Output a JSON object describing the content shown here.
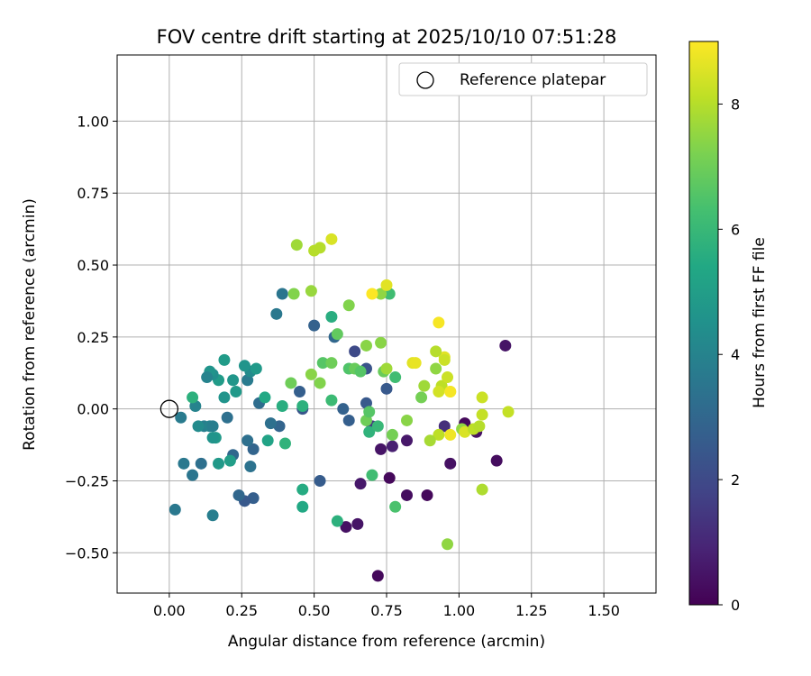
{
  "chart_data": {
    "type": "scatter",
    "title": "FOV centre drift starting at 2025/10/10 07:51:28",
    "xlabel": "Angular distance from reference (arcmin)",
    "ylabel": "Rotation from reference (arcmin)",
    "xlim": [
      -0.18,
      1.68
    ],
    "ylim": [
      -0.64,
      1.23
    ],
    "xticks": [
      0.0,
      0.25,
      0.5,
      0.75,
      1.0,
      1.25,
      1.5
    ],
    "xtick_labels": [
      "0.00",
      "0.25",
      "0.50",
      "0.75",
      "1.00",
      "1.25",
      "1.50"
    ],
    "yticks": [
      -0.5,
      -0.25,
      0.0,
      0.25,
      0.5,
      0.75,
      1.0
    ],
    "ytick_labels": [
      "−0.50",
      "−0.25",
      "0.00",
      "0.25",
      "0.50",
      "0.75",
      "1.00"
    ],
    "grid": true,
    "legend_position": "top-right",
    "reference": {
      "label": "Reference platepar",
      "x": 0.0,
      "y": 0.0
    },
    "colorbar": {
      "label": "Hours from first FF file",
      "range": [
        0,
        9
      ],
      "ticks": [
        0,
        2,
        4,
        6,
        8
      ],
      "tick_labels": [
        "0",
        "2",
        "4",
        "6",
        "8"
      ],
      "colormap": "viridis"
    },
    "points": [
      [
        0.72,
        -0.58,
        0.2
      ],
      [
        0.61,
        -0.41,
        0.4
      ],
      [
        0.65,
        -0.4,
        0.5
      ],
      [
        0.66,
        -0.26,
        0.6
      ],
      [
        0.76,
        -0.24,
        0.2
      ],
      [
        0.82,
        -0.3,
        0.3
      ],
      [
        0.89,
        -0.3,
        0.2
      ],
      [
        0.97,
        -0.19,
        0.4
      ],
      [
        1.13,
        -0.18,
        0.3
      ],
      [
        1.16,
        0.22,
        0.5
      ],
      [
        1.02,
        -0.05,
        0.2
      ],
      [
        1.06,
        -0.08,
        0.4
      ],
      [
        0.95,
        -0.06,
        1.2
      ],
      [
        0.73,
        -0.14,
        0.5
      ],
      [
        0.77,
        -0.13,
        0.8
      ],
      [
        0.82,
        -0.11,
        0.6
      ],
      [
        0.7,
        -0.06,
        1.5
      ],
      [
        0.68,
        0.02,
        2.5
      ],
      [
        0.68,
        0.14,
        2.3
      ],
      [
        0.75,
        0.07,
        2.5
      ],
      [
        0.64,
        0.2,
        2.0
      ],
      [
        0.6,
        0.0,
        2.8
      ],
      [
        0.62,
        -0.04,
        2.7
      ],
      [
        0.57,
        0.25,
        3.0
      ],
      [
        0.5,
        0.29,
        2.8
      ],
      [
        0.52,
        -0.25,
        2.6
      ],
      [
        0.45,
        0.06,
        2.7
      ],
      [
        0.46,
        0.0,
        2.4
      ],
      [
        0.38,
        -0.06,
        2.9
      ],
      [
        0.35,
        -0.05,
        3.3
      ],
      [
        0.39,
        0.4,
        3.5
      ],
      [
        0.37,
        0.33,
        3.6
      ],
      [
        0.31,
        0.02,
        3.2
      ],
      [
        0.29,
        -0.14,
        2.9
      ],
      [
        0.27,
        -0.11,
        3.3
      ],
      [
        0.28,
        -0.2,
        3.4
      ],
      [
        0.29,
        -0.31,
        2.7
      ],
      [
        0.26,
        -0.32,
        2.5
      ],
      [
        0.24,
        -0.3,
        3.0
      ],
      [
        0.22,
        -0.16,
        3.0
      ],
      [
        0.2,
        -0.03,
        3.3
      ],
      [
        0.19,
        0.04,
        4.6
      ],
      [
        0.22,
        0.1,
        4.7
      ],
      [
        0.23,
        0.06,
        4.8
      ],
      [
        0.27,
        0.1,
        3.7
      ],
      [
        0.28,
        0.13,
        4.3
      ],
      [
        0.3,
        0.14,
        4.8
      ],
      [
        0.26,
        0.15,
        4.6
      ],
      [
        0.19,
        0.17,
        4.9
      ],
      [
        0.17,
        0.1,
        4.9
      ],
      [
        0.15,
        0.12,
        4.4
      ],
      [
        0.14,
        0.13,
        4.6
      ],
      [
        0.13,
        0.11,
        4.0
      ],
      [
        0.12,
        -0.06,
        3.8
      ],
      [
        0.14,
        -0.06,
        4.0
      ],
      [
        0.15,
        -0.06,
        3.8
      ],
      [
        0.16,
        -0.1,
        4.8
      ],
      [
        0.1,
        -0.06,
        4.3
      ],
      [
        0.09,
        0.01,
        4.0
      ],
      [
        0.08,
        0.04,
        5.7
      ],
      [
        0.04,
        -0.03,
        3.7
      ],
      [
        0.05,
        -0.19,
        3.6
      ],
      [
        0.08,
        -0.23,
        3.5
      ],
      [
        0.11,
        -0.19,
        3.3
      ],
      [
        0.15,
        -0.1,
        4.6
      ],
      [
        0.17,
        -0.19,
        4.8
      ],
      [
        0.21,
        -0.18,
        5.0
      ],
      [
        0.15,
        -0.37,
        3.8
      ],
      [
        0.02,
        -0.35,
        3.6
      ],
      [
        0.34,
        -0.11,
        5.2
      ],
      [
        0.33,
        0.04,
        5.4
      ],
      [
        0.39,
        0.01,
        5.6
      ],
      [
        0.4,
        -0.12,
        5.8
      ],
      [
        0.46,
        0.01,
        5.7
      ],
      [
        0.46,
        -0.28,
        5.5
      ],
      [
        0.46,
        -0.34,
        5.4
      ],
      [
        0.56,
        0.03,
        6.1
      ],
      [
        0.56,
        0.32,
        5.6
      ],
      [
        0.58,
        0.26,
        6.8
      ],
      [
        0.62,
        0.14,
        6.5
      ],
      [
        0.64,
        0.14,
        6.9
      ],
      [
        0.66,
        0.13,
        6.6
      ],
      [
        0.68,
        -0.04,
        7.0
      ],
      [
        0.69,
        -0.01,
        6.6
      ],
      [
        0.69,
        -0.08,
        5.8
      ],
      [
        0.72,
        -0.06,
        6.0
      ],
      [
        0.7,
        -0.23,
        6.2
      ],
      [
        0.78,
        -0.34,
        6.4
      ],
      [
        0.58,
        -0.39,
        5.7
      ],
      [
        0.76,
        0.4,
        6.2
      ],
      [
        0.78,
        0.11,
        6.2
      ],
      [
        0.74,
        0.13,
        6.9
      ],
      [
        0.73,
        0.23,
        7.4
      ],
      [
        0.68,
        0.22,
        7.4
      ],
      [
        0.73,
        0.4,
        7.5
      ],
      [
        0.62,
        0.36,
        7.3
      ],
      [
        0.75,
        0.14,
        7.7
      ],
      [
        0.77,
        -0.09,
        7.1
      ],
      [
        0.82,
        -0.04,
        7.4
      ],
      [
        0.87,
        0.04,
        7.1
      ],
      [
        0.88,
        0.08,
        7.7
      ],
      [
        0.92,
        0.14,
        7.5
      ],
      [
        0.94,
        0.08,
        8.1
      ],
      [
        0.93,
        0.06,
        8.4
      ],
      [
        0.96,
        0.11,
        8.3
      ],
      [
        0.97,
        0.06,
        8.7
      ],
      [
        0.97,
        -0.09,
        8.8
      ],
      [
        0.93,
        -0.09,
        8.1
      ],
      [
        0.9,
        -0.11,
        7.8
      ],
      [
        1.01,
        -0.07,
        7.5
      ],
      [
        1.02,
        -0.08,
        8.5
      ],
      [
        1.05,
        -0.07,
        8.1
      ],
      [
        1.07,
        -0.06,
        8.0
      ],
      [
        1.08,
        -0.02,
        8.2
      ],
      [
        1.08,
        0.04,
        8.3
      ],
      [
        1.08,
        -0.28,
        7.9
      ],
      [
        1.17,
        -0.01,
        8.2
      ],
      [
        0.96,
        -0.47,
        7.5
      ],
      [
        0.52,
        0.09,
        7.3
      ],
      [
        0.49,
        0.12,
        7.4
      ],
      [
        0.42,
        0.09,
        7.0
      ],
      [
        0.43,
        0.4,
        7.3
      ],
      [
        0.49,
        0.41,
        7.6
      ],
      [
        0.44,
        0.57,
        7.7
      ],
      [
        0.5,
        0.55,
        8.0
      ],
      [
        0.52,
        0.56,
        8.0
      ],
      [
        0.56,
        0.59,
        8.5
      ],
      [
        0.53,
        0.16,
        6.6
      ],
      [
        0.56,
        0.16,
        7.0
      ],
      [
        0.7,
        0.4,
        9.0
      ],
      [
        0.75,
        0.43,
        8.6
      ],
      [
        0.84,
        0.16,
        8.6
      ],
      [
        0.85,
        0.16,
        8.7
      ],
      [
        0.93,
        0.3,
        8.9
      ],
      [
        0.95,
        0.18,
        8.6
      ],
      [
        0.95,
        0.17,
        8.3
      ],
      [
        0.92,
        0.2,
        8.0
      ],
      [
        0.97,
        0.06,
        8.9
      ]
    ]
  }
}
